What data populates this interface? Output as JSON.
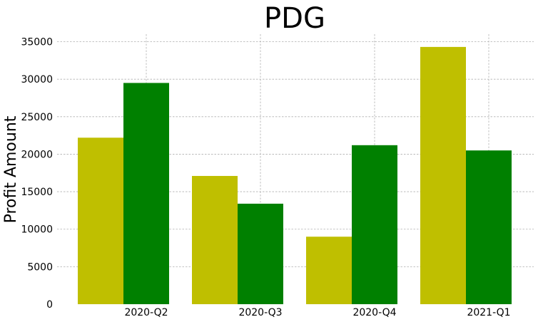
{
  "chart_data": {
    "type": "bar",
    "title": "PDG",
    "xlabel": "",
    "ylabel": "Profit Amount",
    "categories": [
      "2020-Q2",
      "2020-Q3",
      "2020-Q4",
      "2021-Q1"
    ],
    "series": [
      {
        "color": "#bfbf00",
        "values": [
          22200,
          17100,
          9000,
          34300
        ]
      },
      {
        "color": "#008000",
        "values": [
          29500,
          13400,
          21200,
          20500
        ]
      }
    ],
    "yticks": [
      0,
      5000,
      10000,
      15000,
      20000,
      25000,
      30000,
      35000
    ],
    "ylim": [
      0,
      36000
    ],
    "grid": true,
    "legend": "none"
  }
}
